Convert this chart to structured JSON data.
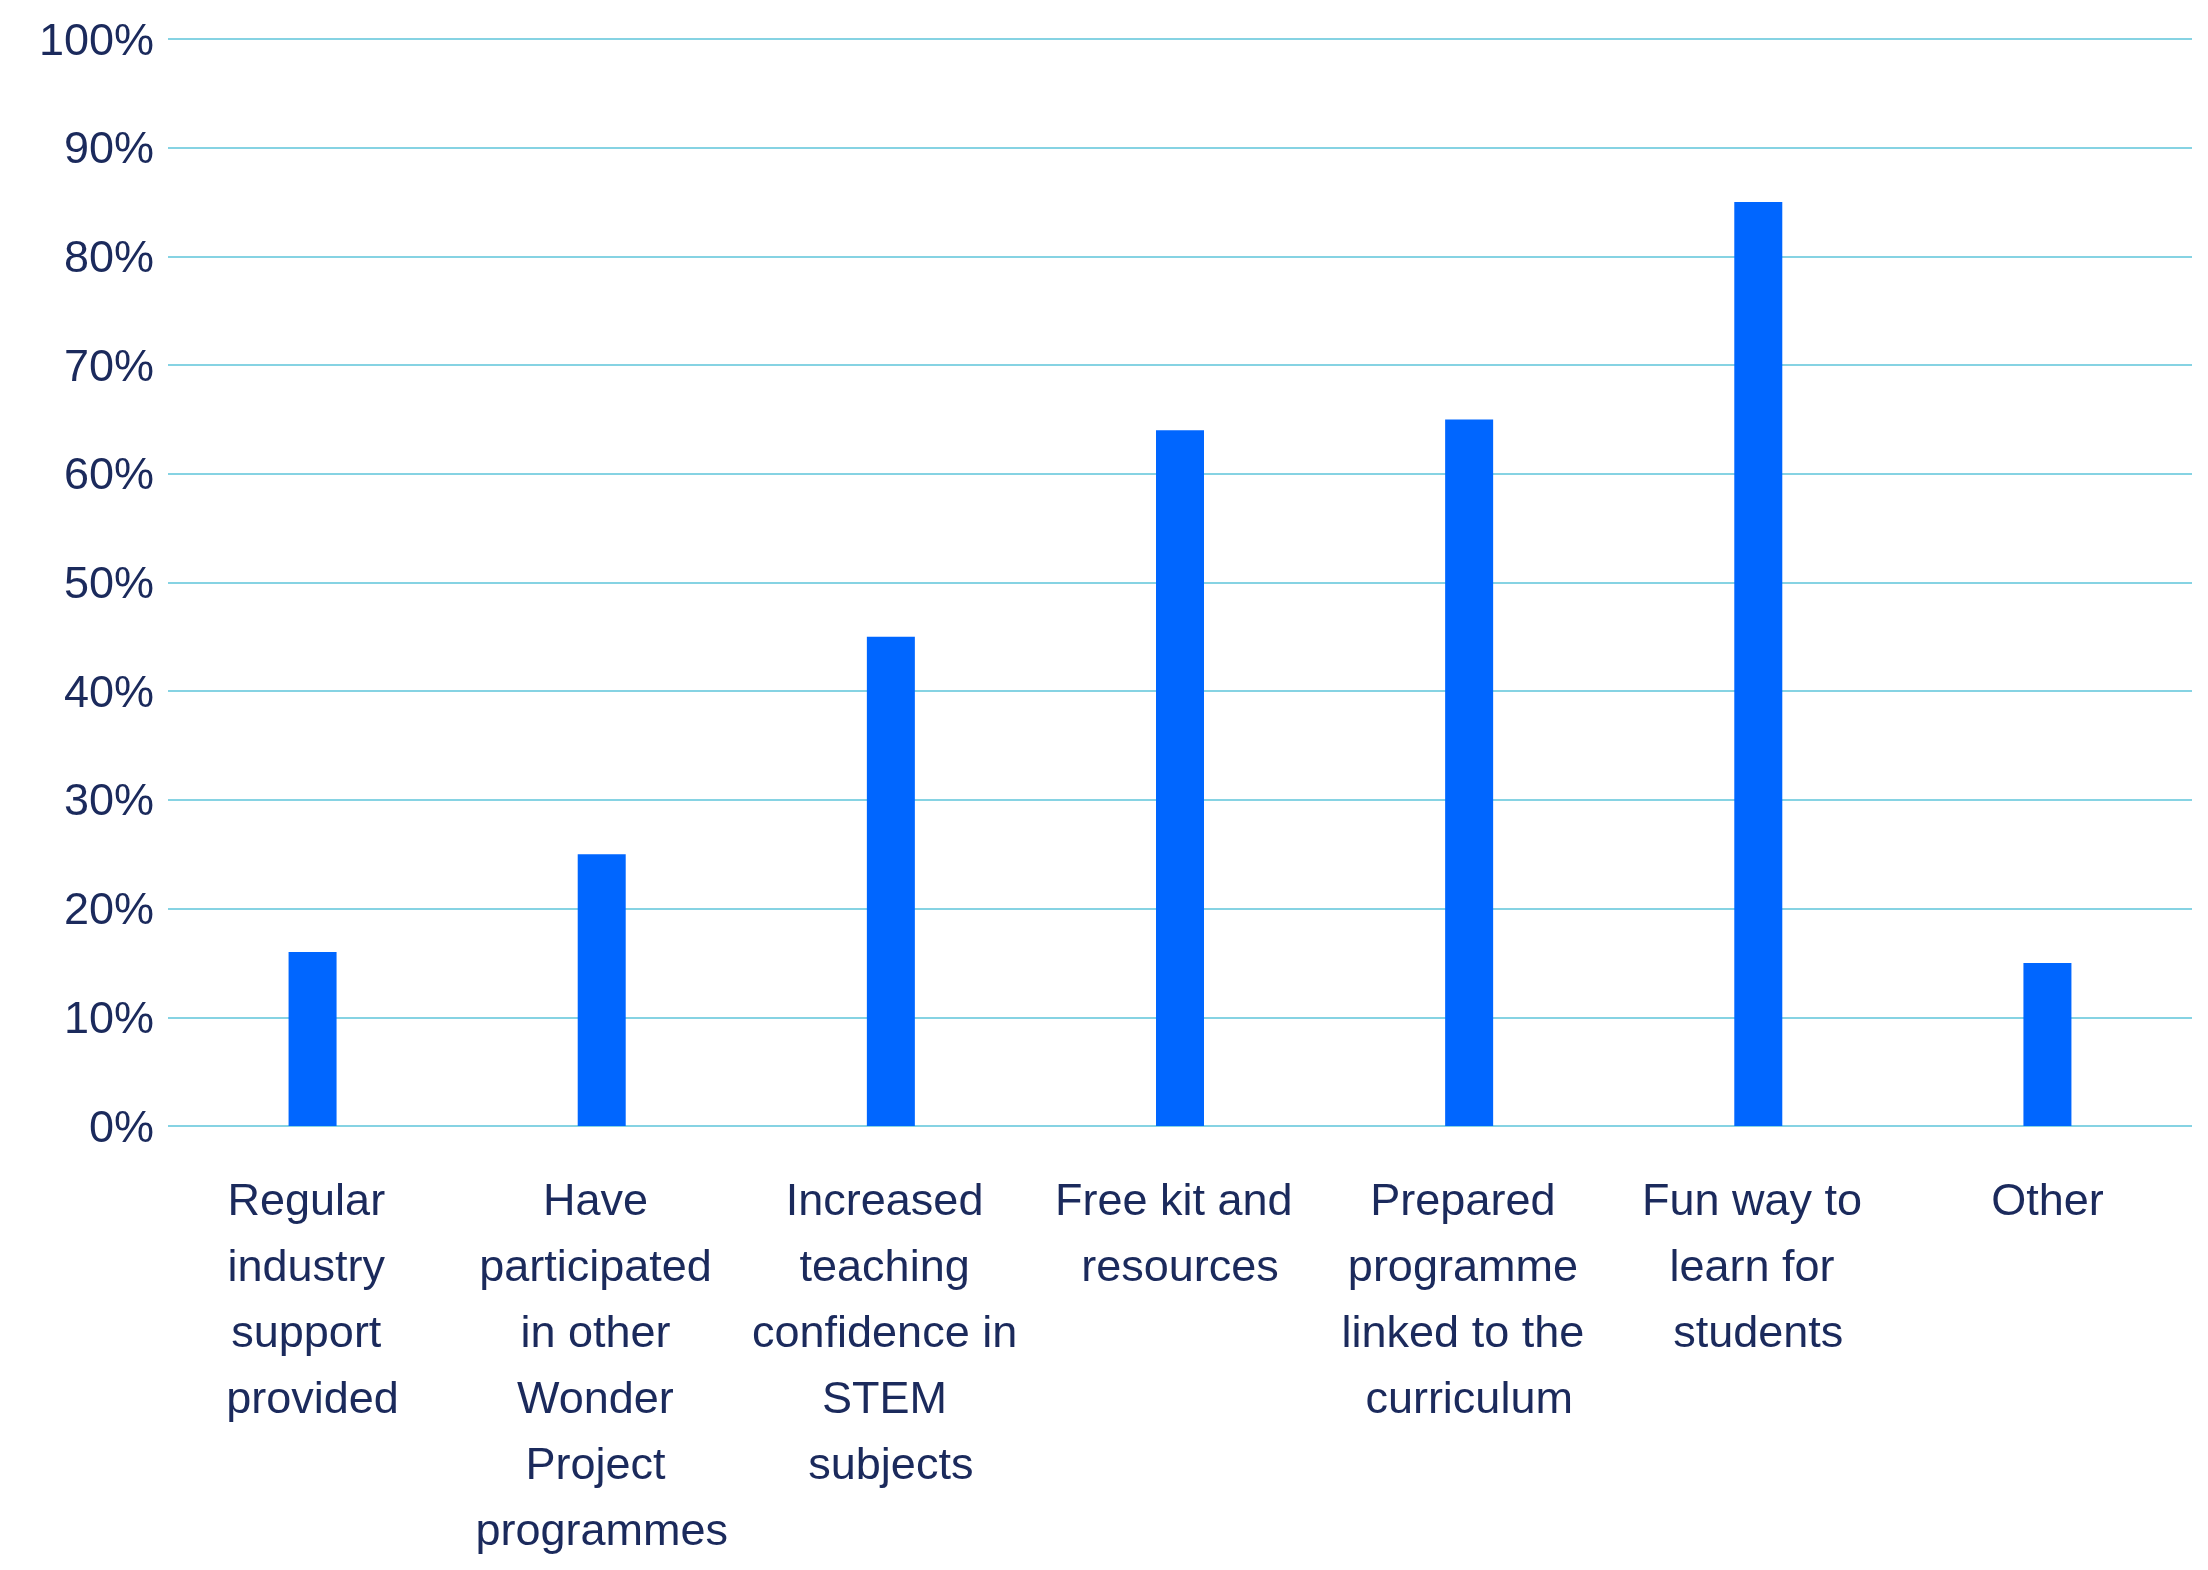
{
  "chart_data": {
    "type": "bar",
    "categories": [
      "Regular industry support provided",
      "Have participated in other Wonder Project programmes",
      "Increased teaching confidence in STEM subjects",
      "Free kit and resources",
      "Prepared programme linked to the curriculum",
      "Fun way to learn for students",
      "Other"
    ],
    "values": [
      16,
      25,
      45,
      64,
      65,
      85,
      15
    ],
    "color": "#0066ff",
    "ylim": [
      0,
      100
    ],
    "yticks": [
      {
        "value": 0,
        "label": "0%"
      },
      {
        "value": 10,
        "label": "10%"
      },
      {
        "value": 20,
        "label": "20%"
      },
      {
        "value": 30,
        "label": "30%"
      },
      {
        "value": 40,
        "label": "40%"
      },
      {
        "value": 50,
        "label": "50%"
      },
      {
        "value": 60,
        "label": "60%"
      },
      {
        "value": 70,
        "label": "70%"
      },
      {
        "value": 80,
        "label": "80%"
      },
      {
        "value": 90,
        "label": "90%"
      },
      {
        "value": 100,
        "label": "100%"
      }
    ],
    "grid": "y"
  }
}
